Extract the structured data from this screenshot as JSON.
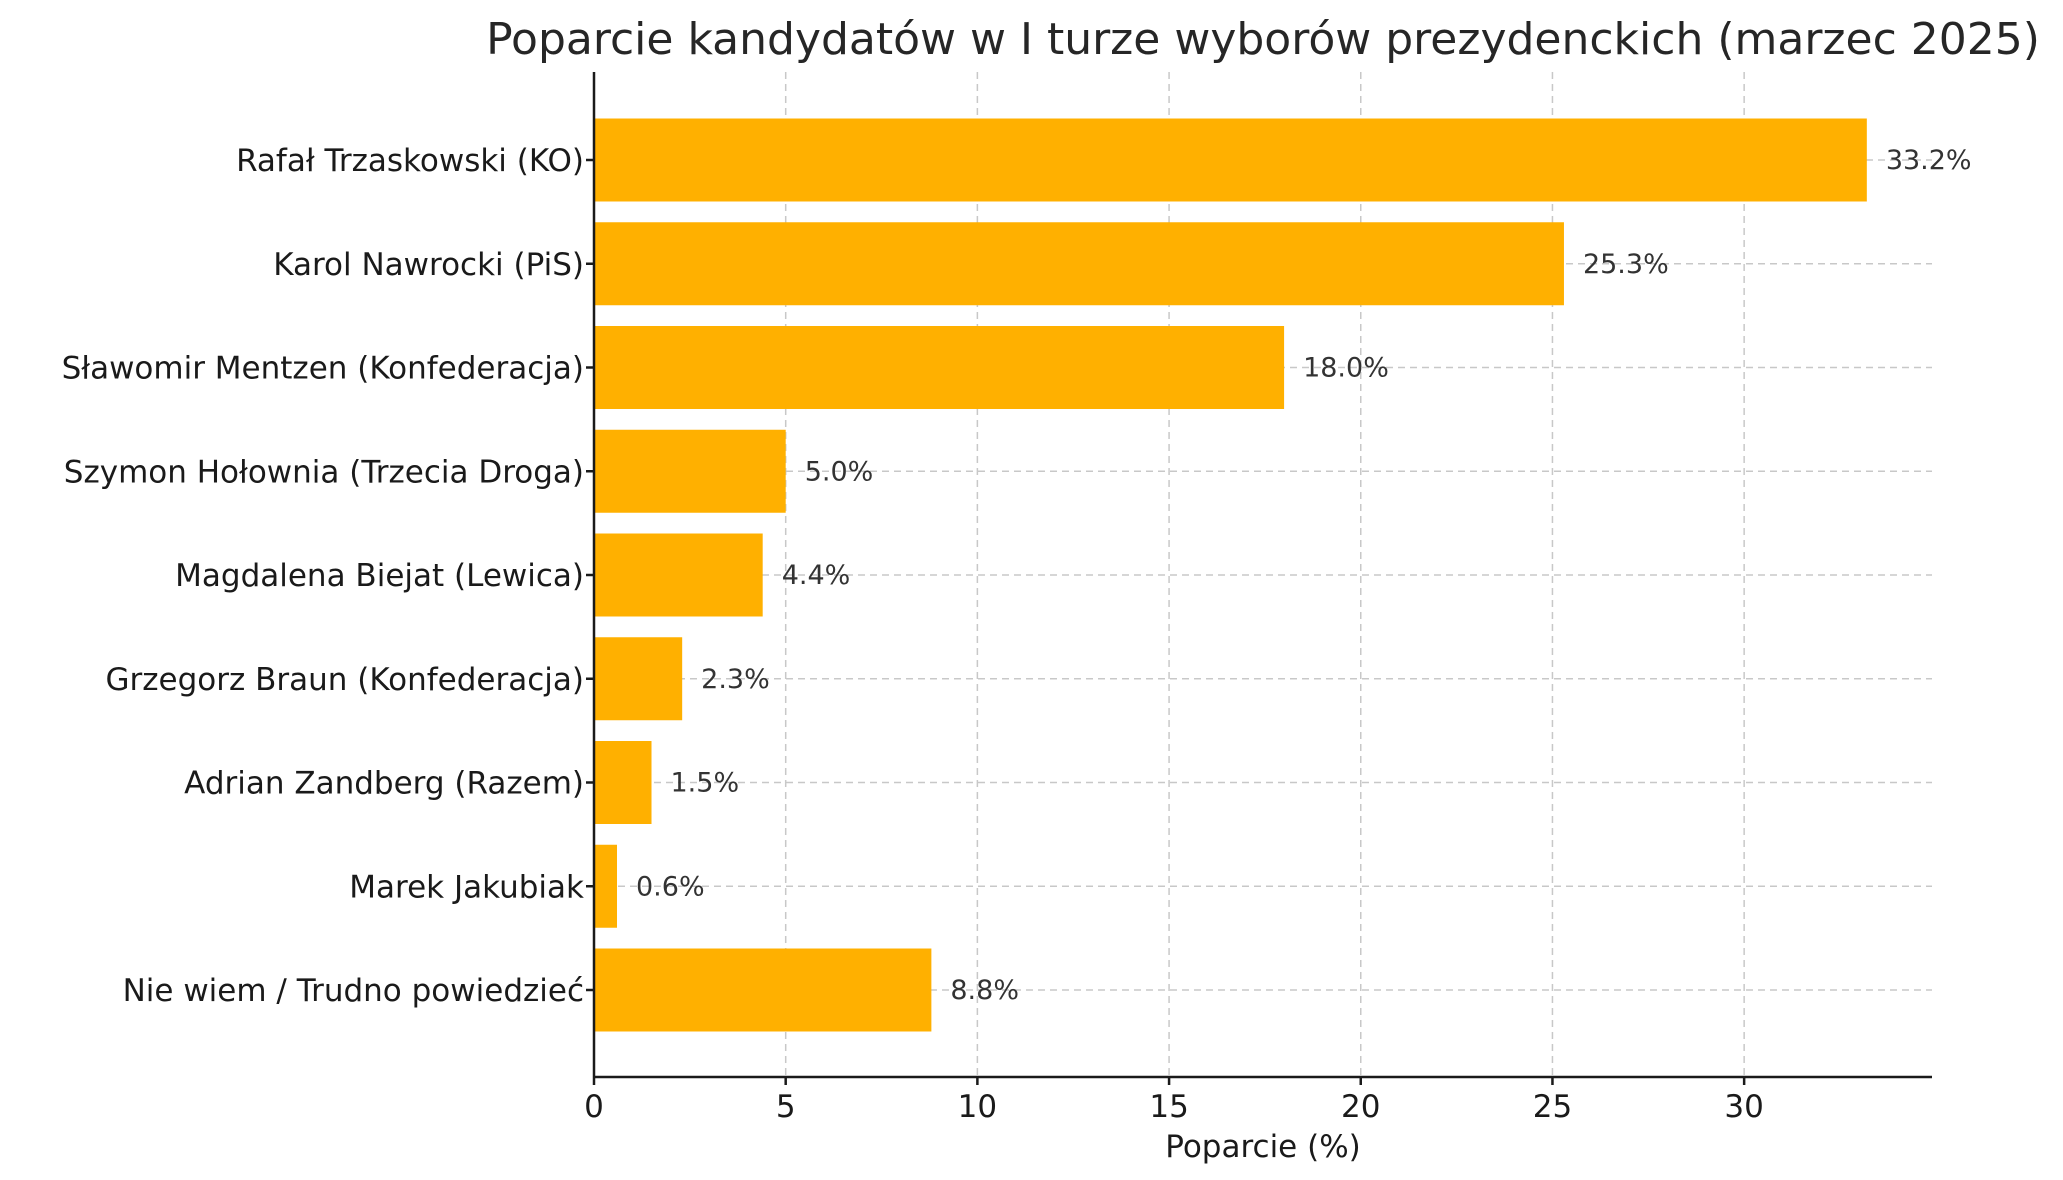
{
  "chart_data": {
    "type": "bar",
    "orientation": "horizontal",
    "title": "Poparcie kandydatów w I turze wyborów prezydenckich (marzec 2025)",
    "xlabel": "Poparcie (%)",
    "ylabel": "",
    "xlim": [
      0,
      34.9
    ],
    "xticks": [
      0,
      5,
      10,
      15,
      20,
      25,
      30
    ],
    "grid": true,
    "bar_color": "#FFB000",
    "categories": [
      "Rafał Trzaskowski (KO)",
      "Karol Nawrocki (PiS)",
      "Sławomir Mentzen (Konfederacja)",
      "Szymon Hołownia (Trzecia Droga)",
      "Magdalena Biejat (Lewica)",
      "Grzegorz Braun (Konfederacja)",
      "Adrian Zandberg (Razem)",
      "Marek Jakubiak",
      "Nie wiem / Trudno powiedzieć"
    ],
    "values": [
      33.2,
      25.3,
      18.0,
      5.0,
      4.4,
      2.3,
      1.5,
      0.6,
      8.8
    ],
    "data_labels": [
      "33.2%",
      "25.3%",
      "18.0%",
      "5.0%",
      "4.4%",
      "2.3%",
      "1.5%",
      "0.6%",
      "8.8%"
    ]
  }
}
